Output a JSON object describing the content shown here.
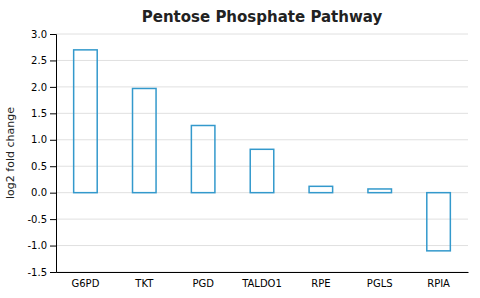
{
  "chart_data": {
    "type": "bar",
    "title": "Pentose Phosphate Pathway",
    "ylabel": "log2 fold change",
    "categories": [
      "G6PD",
      "TKT",
      "PGD",
      "TALDO1",
      "RPE",
      "PGLS",
      "RPIA"
    ],
    "values": [
      2.7,
      1.97,
      1.27,
      0.82,
      0.12,
      0.07,
      -1.1
    ],
    "color": "#3399cc",
    "ylim": [
      -1.5,
      3.0
    ],
    "yticks": [
      -1.5,
      {
        "value": -1.0,
        "label": "-1.0"
      },
      -0.5,
      {
        "value": 0.0,
        "label": "0.0"
      },
      0.5,
      {
        "value": 1.0,
        "label": "1.0"
      },
      1.5,
      {
        "value": 2.0,
        "label": "2.0"
      },
      2.5,
      {
        "value": 3.0,
        "label": "3.0"
      }
    ],
    "grid": true
  }
}
